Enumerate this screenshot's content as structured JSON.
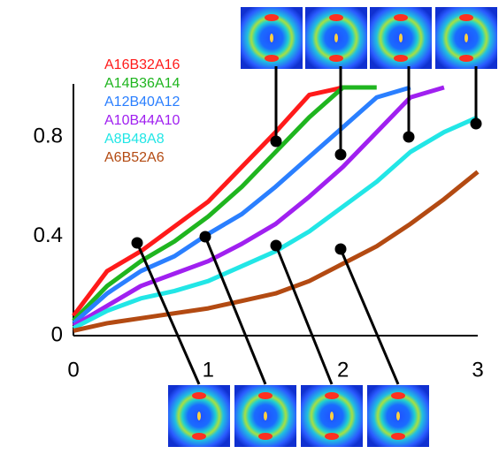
{
  "chart_data": {
    "type": "line",
    "x": [
      0,
      0.25,
      0.5,
      0.75,
      1,
      1.25,
      1.5,
      1.75,
      2,
      2.25,
      2.5,
      2.75,
      3
    ],
    "series": [
      {
        "name": "A16B32A16",
        "color": "#ff1a1a",
        "values": [
          0.08,
          0.26,
          0.34,
          0.44,
          0.54,
          0.68,
          0.82,
          0.97,
          1.0,
          null,
          null,
          null,
          null
        ]
      },
      {
        "name": "A14B36A14",
        "color": "#1fb51f",
        "values": [
          0.06,
          0.2,
          0.3,
          0.38,
          0.48,
          0.6,
          0.74,
          0.88,
          1.0,
          1.0,
          null,
          null,
          null
        ]
      },
      {
        "name": "A12B40A12",
        "color": "#2a7fff",
        "values": [
          0.05,
          0.17,
          0.26,
          0.32,
          0.41,
          0.49,
          0.6,
          0.72,
          0.84,
          0.96,
          1.0,
          null,
          null
        ]
      },
      {
        "name": "A10B44A10",
        "color": "#a020f0",
        "values": [
          0.04,
          0.12,
          0.2,
          0.25,
          0.3,
          0.37,
          0.45,
          0.56,
          0.68,
          0.82,
          0.96,
          1.0,
          null
        ]
      },
      {
        "name": "A8B48A8",
        "color": "#22e6e6",
        "values": [
          0.03,
          0.1,
          0.15,
          0.18,
          0.22,
          0.28,
          0.34,
          0.42,
          0.52,
          0.62,
          0.74,
          0.82,
          0.88
        ]
      },
      {
        "name": "A6B52A6",
        "color": "#b34a12",
        "values": [
          0.02,
          0.05,
          0.07,
          0.09,
          0.11,
          0.14,
          0.17,
          0.22,
          0.29,
          0.36,
          0.45,
          0.55,
          0.66
        ]
      }
    ],
    "xlim": [
      0,
      3
    ],
    "xticks": [
      0,
      1,
      2,
      3
    ],
    "ylim": [
      0,
      1
    ],
    "yticks": [
      0,
      0.4,
      0.8
    ]
  }
}
